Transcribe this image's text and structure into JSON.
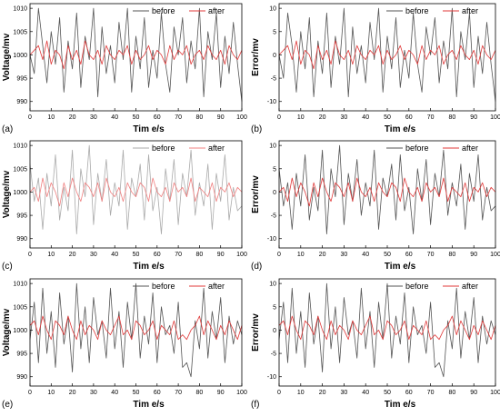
{
  "chart_data": [
    {
      "panel": "(a)",
      "type": "line",
      "xlabel": "Tim e/s",
      "ylabel": "Voltage/mv",
      "xlim": [
        0,
        100
      ],
      "ylim": [
        988,
        1011
      ],
      "xticks": [
        "0",
        "10",
        "20",
        "30",
        "40",
        "50",
        "60",
        "70",
        "80",
        "90",
        "100"
      ],
      "yticks": [
        "990",
        "995",
        "1000",
        "1005",
        "1010"
      ],
      "legend": "top-right",
      "x": [
        0,
        2,
        4,
        6,
        8,
        10,
        12,
        14,
        16,
        18,
        20,
        22,
        24,
        26,
        28,
        30,
        32,
        34,
        36,
        38,
        40,
        42,
        44,
        46,
        48,
        50,
        52,
        54,
        56,
        58,
        60,
        62,
        64,
        66,
        68,
        70,
        72,
        74,
        76,
        78,
        80,
        82,
        84,
        86,
        88,
        90,
        92,
        94,
        96,
        98,
        100
      ],
      "series": [
        {
          "name": "before",
          "color": "#555555",
          "values": [
            1000,
            996,
            1010,
            1002,
            994,
            1005,
            998,
            1008,
            992,
            1003,
            997,
            1009,
            993,
            1004,
            999,
            1010,
            991,
            1006,
            996,
            1002,
            994,
            1007,
            999,
            1010,
            992,
            1004,
            997,
            1008,
            993,
            1001,
            995,
            1009,
            998,
            992,
            1006,
            1000,
            1008,
            994,
            1003,
            997,
            1010,
            991,
            1005,
            999,
            1009,
            993,
            1004,
            996,
            1007,
            998,
            990
          ]
        },
        {
          "name": "after",
          "color": "#e03a3a",
          "values": [
            1000,
            1001,
            1002,
            999,
            1003,
            998,
            1001,
            1000,
            997,
            1002,
            999,
            1001,
            998,
            1003,
            1000,
            999,
            1001,
            998,
            1002,
            1000,
            999,
            1001,
            1000,
            1002,
            998,
            1001,
            999,
            1000,
            1002,
            999,
            1001,
            1000,
            998,
            1002,
            999,
            1001,
            1000,
            1002,
            998,
            1000,
            1001,
            999,
            1002,
            1000,
            999,
            1001,
            998,
            1002,
            1000,
            999,
            1001
          ]
        }
      ]
    },
    {
      "panel": "(b)",
      "type": "line",
      "xlabel": "Tim e/s",
      "ylabel": "Error/mv",
      "xlim": [
        0,
        100
      ],
      "ylim": [
        -12,
        11
      ],
      "xticks": [
        "0",
        "10",
        "20",
        "30",
        "40",
        "50",
        "60",
        "70",
        "80",
        "90",
        "100"
      ],
      "yticks": [
        "-10",
        "-5",
        "0",
        "5",
        "10"
      ],
      "legend": "top-right",
      "x": [
        0,
        2,
        4,
        6,
        8,
        10,
        12,
        14,
        16,
        18,
        20,
        22,
        24,
        26,
        28,
        30,
        32,
        34,
        36,
        38,
        40,
        42,
        44,
        46,
        48,
        50,
        52,
        54,
        56,
        58,
        60,
        62,
        64,
        66,
        68,
        70,
        72,
        74,
        76,
        78,
        80,
        82,
        84,
        86,
        88,
        90,
        92,
        94,
        96,
        98,
        100
      ],
      "series": [
        {
          "name": "before",
          "color": "#555555",
          "values": [
            0,
            -5,
            9,
            2,
            -8,
            5,
            -3,
            8,
            -9,
            3,
            -4,
            9,
            -7,
            4,
            -2,
            10,
            -9,
            6,
            -4,
            2,
            -6,
            7,
            -1,
            10,
            -8,
            4,
            -3,
            8,
            -7,
            1,
            -5,
            9,
            -2,
            -8,
            6,
            0,
            8,
            -6,
            3,
            -3,
            10,
            -9,
            5,
            -1,
            9,
            -7,
            4,
            -4,
            7,
            -2,
            -10
          ]
        },
        {
          "name": "after",
          "color": "#e03a3a",
          "values": [
            0,
            1,
            2,
            -1,
            3,
            -2,
            1,
            0,
            -3,
            2,
            -1,
            1,
            -2,
            3,
            0,
            -1,
            1,
            -2,
            2,
            0,
            -1,
            1,
            0,
            2,
            -2,
            1,
            -1,
            0,
            2,
            -1,
            1,
            0,
            -2,
            2,
            -1,
            1,
            0,
            2,
            -2,
            0,
            1,
            -1,
            2,
            0,
            -1,
            1,
            -2,
            2,
            0,
            -1,
            1
          ]
        }
      ]
    },
    {
      "panel": "(c)",
      "type": "line",
      "xlabel": "Tim e/s",
      "ylabel": "Voltage/mv",
      "xlim": [
        0,
        100
      ],
      "ylim": [
        988,
        1011
      ],
      "xticks": [
        "0",
        "10",
        "20",
        "30",
        "40",
        "50",
        "60",
        "70",
        "80",
        "90",
        "100"
      ],
      "yticks": [
        "990",
        "995",
        "1000",
        "1005",
        "1010"
      ],
      "legend": "top-right",
      "x": [
        0,
        2,
        4,
        6,
        8,
        10,
        12,
        14,
        16,
        18,
        20,
        22,
        24,
        26,
        28,
        30,
        32,
        34,
        36,
        38,
        40,
        42,
        44,
        46,
        48,
        50,
        52,
        54,
        56,
        58,
        60,
        62,
        64,
        66,
        68,
        70,
        72,
        74,
        76,
        78,
        80,
        82,
        84,
        86,
        88,
        90,
        92,
        94,
        96,
        98,
        100
      ],
      "series": [
        {
          "name": "before",
          "color": "#aaaaaa",
          "values": [
            1006,
            998,
            1003,
            992,
            1004,
            997,
            1008,
            994,
            1001,
            996,
            1009,
            991,
            1005,
            999,
            1010,
            993,
            1004,
            998,
            1007,
            995,
            1002,
            997,
            1009,
            992,
            1003,
            999,
            1006,
            994,
            1008,
            996,
            1001,
            991,
            1005,
            998,
            1007,
            993,
            1004,
            999,
            1009,
            995,
            1002,
            997,
            1006,
            992,
            1004,
            998,
            1008,
            994,
            1001,
            996,
            997
          ]
        },
        {
          "name": "after",
          "color": "#f08080",
          "values": [
            1000,
            1001,
            998,
            1003,
            999,
            1002,
            1000,
            997,
            1002,
            999,
            1003,
            1000,
            998,
            1002,
            1001,
            999,
            1002,
            998,
            1003,
            1000,
            999,
            1001,
            998,
            1002,
            1000,
            999,
            1002,
            1001,
            998,
            1003,
            1000,
            999,
            1001,
            998,
            1002,
            1000,
            1001,
            999,
            1003,
            998,
            1001,
            1000,
            999,
            1002,
            998,
            1001,
            1000,
            1002,
            999,
            1001,
            1000
          ]
        }
      ]
    },
    {
      "panel": "(d)",
      "type": "line",
      "xlabel": "Tim e/s",
      "ylabel": "Error/mv",
      "xlim": [
        0,
        100
      ],
      "ylim": [
        -12,
        11
      ],
      "xticks": [
        "0",
        "10",
        "20",
        "30",
        "40",
        "50",
        "60",
        "70",
        "80",
        "90",
        "100"
      ],
      "yticks": [
        "-10",
        "-5",
        "0",
        "5",
        "10"
      ],
      "legend": "top-right",
      "x": [
        0,
        2,
        4,
        6,
        8,
        10,
        12,
        14,
        16,
        18,
        20,
        22,
        24,
        26,
        28,
        30,
        32,
        34,
        36,
        38,
        40,
        42,
        44,
        46,
        48,
        50,
        52,
        54,
        56,
        58,
        60,
        62,
        64,
        66,
        68,
        70,
        72,
        74,
        76,
        78,
        80,
        82,
        84,
        86,
        88,
        90,
        92,
        94,
        96,
        98,
        100
      ],
      "series": [
        {
          "name": "before",
          "color": "#555555",
          "values": [
            5,
            -3,
            2,
            -8,
            4,
            -3,
            8,
            -6,
            1,
            -4,
            9,
            -9,
            5,
            -1,
            10,
            -7,
            4,
            -2,
            7,
            -5,
            2,
            -3,
            9,
            -8,
            3,
            -1,
            6,
            -6,
            8,
            -4,
            1,
            -9,
            5,
            -2,
            7,
            -7,
            4,
            -1,
            9,
            -5,
            2,
            -3,
            6,
            -8,
            4,
            -2,
            8,
            -6,
            1,
            -4,
            -3
          ]
        },
        {
          "name": "after",
          "color": "#e03a3a",
          "values": [
            0,
            1,
            -2,
            3,
            -1,
            2,
            0,
            -3,
            2,
            -1,
            3,
            0,
            -2,
            2,
            1,
            -1,
            2,
            -2,
            3,
            0,
            -1,
            1,
            -2,
            2,
            0,
            -1,
            2,
            1,
            -2,
            3,
            0,
            -1,
            1,
            -2,
            2,
            0,
            1,
            -1,
            3,
            -2,
            1,
            0,
            -1,
            2,
            -2,
            1,
            0,
            2,
            -1,
            1,
            0
          ]
        }
      ]
    },
    {
      "panel": "(e)",
      "type": "line",
      "xlabel": "Tim e/s",
      "ylabel": "Voltage/mv",
      "xlim": [
        0,
        100
      ],
      "ylim": [
        988,
        1011
      ],
      "xticks": [
        "0",
        "10",
        "20",
        "30",
        "40",
        "50",
        "60",
        "70",
        "80",
        "90",
        "100"
      ],
      "yticks": [
        "990",
        "995",
        "1000",
        "1005",
        "1010"
      ],
      "legend": "top-right",
      "x": [
        0,
        2,
        4,
        6,
        8,
        10,
        12,
        14,
        16,
        18,
        20,
        22,
        24,
        26,
        28,
        30,
        32,
        34,
        36,
        38,
        40,
        42,
        44,
        46,
        48,
        50,
        52,
        54,
        56,
        58,
        60,
        62,
        64,
        66,
        68,
        70,
        72,
        74,
        76,
        78,
        80,
        82,
        84,
        86,
        88,
        90,
        92,
        94,
        96,
        98,
        100
      ],
      "series": [
        {
          "name": "before",
          "color": "#555555",
          "values": [
            998,
            1006,
            993,
            1009,
            995,
            1004,
            992,
            1008,
            997,
            1003,
            991,
            1010,
            996,
            1005,
            993,
            1007,
            999,
            1002,
            994,
            1009,
            996,
            1004,
            992,
            1006,
            998,
            1010,
            994,
            1003,
            997,
            1008,
            993,
            1005,
            999,
            1001,
            995,
            1006,
            992,
            993,
            990,
            1002,
            996,
            1009,
            994,
            1004,
            998,
            1007,
            993,
            1003,
            997,
            1002,
            999
          ]
        },
        {
          "name": "after",
          "color": "#e03a3a",
          "values": [
            1001,
            1002,
            999,
            1003,
            1000,
            998,
            1002,
            1001,
            999,
            1003,
            1000,
            998,
            1002,
            999,
            1001,
            1000,
            998,
            1002,
            1000,
            999,
            1001,
            1003,
            999,
            1000,
            998,
            1002,
            1001,
            999,
            1000,
            1002,
            998,
            1001,
            1000,
            999,
            1002,
            998,
            999,
            998,
            1000,
            1001,
            1003,
            999,
            1002,
            1000,
            998,
            1001,
            999,
            1002,
            1000,
            998,
            1001
          ]
        }
      ]
    },
    {
      "panel": "(f)",
      "type": "line",
      "xlabel": "Tim e/s",
      "ylabel": "Error/mv",
      "xlim": [
        0,
        100
      ],
      "ylim": [
        -12,
        11
      ],
      "xticks": [
        "0",
        "10",
        "20",
        "30",
        "40",
        "50",
        "60",
        "70",
        "80",
        "90",
        "100"
      ],
      "yticks": [
        "-10",
        "-5",
        "0",
        "5",
        "10"
      ],
      "legend": "top-right",
      "x": [
        0,
        2,
        4,
        6,
        8,
        10,
        12,
        14,
        16,
        18,
        20,
        22,
        24,
        26,
        28,
        30,
        32,
        34,
        36,
        38,
        40,
        42,
        44,
        46,
        48,
        50,
        52,
        54,
        56,
        58,
        60,
        62,
        64,
        66,
        68,
        70,
        72,
        74,
        76,
        78,
        80,
        82,
        84,
        86,
        88,
        90,
        92,
        94,
        96,
        98,
        100
      ],
      "series": [
        {
          "name": "before",
          "color": "#555555",
          "values": [
            -2,
            6,
            -7,
            9,
            -5,
            4,
            -8,
            8,
            -3,
            3,
            -9,
            10,
            -4,
            5,
            -7,
            7,
            -1,
            2,
            -6,
            9,
            -4,
            4,
            -8,
            6,
            -2,
            10,
            -6,
            3,
            -3,
            8,
            -7,
            5,
            -1,
            1,
            -5,
            6,
            -8,
            -7,
            -10,
            2,
            -4,
            9,
            -6,
            4,
            -2,
            7,
            -7,
            3,
            -3,
            2,
            -1
          ]
        },
        {
          "name": "after",
          "color": "#e03a3a",
          "values": [
            1,
            2,
            -1,
            3,
            0,
            -2,
            2,
            1,
            -1,
            3,
            0,
            -2,
            2,
            -1,
            1,
            0,
            -2,
            2,
            0,
            -1,
            1,
            3,
            -1,
            0,
            -2,
            2,
            1,
            -1,
            0,
            2,
            -2,
            1,
            0,
            -1,
            2,
            -2,
            -1,
            -2,
            0,
            1,
            3,
            -1,
            2,
            0,
            -2,
            1,
            -1,
            2,
            0,
            -2,
            1
          ]
        }
      ]
    }
  ]
}
